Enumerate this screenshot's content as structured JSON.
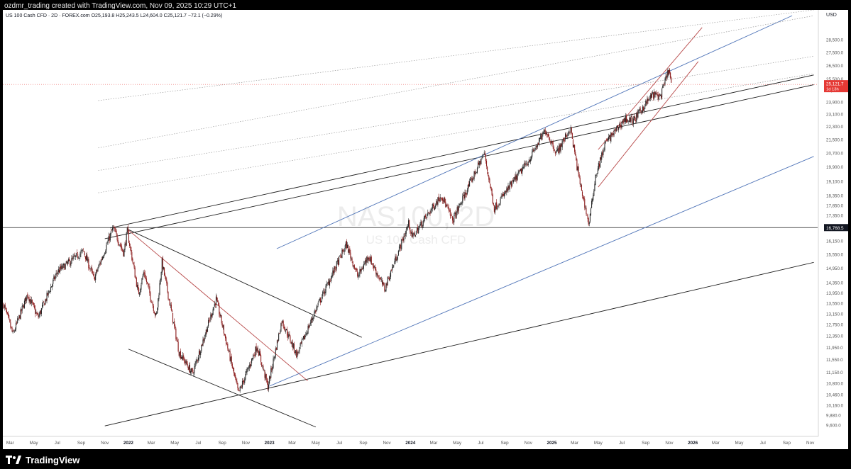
{
  "header": {
    "caption": "ozdmr_trading created with TradingView.com, Nov 09, 2025 10:29 UTC+1"
  },
  "legend": {
    "symbol_text": "US 100 Cash CFD · 2D · FOREX.com",
    "o_label": "O",
    "o_value": "25,193.8",
    "h_label": "H",
    "h_value": "25,243.5",
    "l_label": "L",
    "l_value": "24,604.0",
    "c_label": "C",
    "c_value": "25,121.7",
    "change": "−72.1 (−0.29%)"
  },
  "watermark": {
    "symbol": "NAS100, 2D",
    "description": "US 100 Cash CFD"
  },
  "footer": {
    "brand": "TradingView",
    "brand_icon": "tradingview-logo-icon"
  },
  "colors": {
    "candle_up": "#2a2a2a",
    "candle_down": "#8c1c1c",
    "trend_black": "#1e1e1e",
    "trend_blue": "#4f74b8",
    "trend_red": "#b84a4a",
    "guide_dotted": "#9a9a9a",
    "current_price_bg": "#e53935",
    "level_bg": "#131722"
  },
  "chart_data": {
    "type": "candlestick",
    "title": "NAS100, 2D",
    "subtitle": "US 100 Cash CFD",
    "xlabel": "",
    "ylabel": "",
    "currency": "USD",
    "scale": "log",
    "ylim": [
      9300,
      31000
    ],
    "xlim": [
      "2021-02-10",
      "2026-11-20"
    ],
    "grid": false,
    "y_ticks": [
      {
        "value": 28500,
        "label": "28,500.0"
      },
      {
        "value": 27500,
        "label": "27,500.0"
      },
      {
        "value": 26500,
        "label": "26,500.0"
      },
      {
        "value": 25500,
        "label": "25,500.0"
      },
      {
        "value": 24700,
        "label": "24,700.0"
      },
      {
        "value": 23900,
        "label": "23,900.0"
      },
      {
        "value": 23100,
        "label": "23,100.0"
      },
      {
        "value": 22300,
        "label": "22,300.0"
      },
      {
        "value": 21500,
        "label": "21,500.0"
      },
      {
        "value": 20700,
        "label": "20,700.0"
      },
      {
        "value": 19900,
        "label": "19,900.0"
      },
      {
        "value": 19100,
        "label": "19,100.0"
      },
      {
        "value": 18350,
        "label": "18,350.0"
      },
      {
        "value": 17850,
        "label": "17,850.0"
      },
      {
        "value": 17350,
        "label": "17,350.0"
      },
      {
        "value": 16150,
        "label": "16,150.0"
      },
      {
        "value": 15550,
        "label": "15,550.0"
      },
      {
        "value": 14950,
        "label": "14,950.0"
      },
      {
        "value": 14350,
        "label": "14,350.0"
      },
      {
        "value": 13950,
        "label": "13,950.0"
      },
      {
        "value": 13550,
        "label": "13,550.0"
      },
      {
        "value": 13150,
        "label": "13,150.0"
      },
      {
        "value": 12750,
        "label": "12,750.0"
      },
      {
        "value": 12350,
        "label": "12,350.0"
      },
      {
        "value": 11950,
        "label": "11,950.0"
      },
      {
        "value": 11550,
        "label": "11,550.0"
      },
      {
        "value": 11150,
        "label": "11,150.0"
      },
      {
        "value": 10800,
        "label": "10,800.0"
      },
      {
        "value": 10460,
        "label": "10,460.0"
      },
      {
        "value": 10160,
        "label": "10,160.0"
      },
      {
        "value": 9880,
        "label": "9,880.0"
      },
      {
        "value": 9600,
        "label": "9,600.0"
      }
    ],
    "x_ticks": [
      {
        "date": "2021-03-01",
        "label": "Mar",
        "bold": false
      },
      {
        "date": "2021-05-01",
        "label": "May",
        "bold": false
      },
      {
        "date": "2021-07-01",
        "label": "Jul",
        "bold": false
      },
      {
        "date": "2021-09-01",
        "label": "Sep",
        "bold": false
      },
      {
        "date": "2021-11-01",
        "label": "Nov",
        "bold": false
      },
      {
        "date": "2022-01-01",
        "label": "2022",
        "bold": true
      },
      {
        "date": "2022-03-01",
        "label": "Mar",
        "bold": false
      },
      {
        "date": "2022-05-01",
        "label": "May",
        "bold": false
      },
      {
        "date": "2022-07-01",
        "label": "Jul",
        "bold": false
      },
      {
        "date": "2022-09-01",
        "label": "Sep",
        "bold": false
      },
      {
        "date": "2022-11-01",
        "label": "Nov",
        "bold": false
      },
      {
        "date": "2023-01-01",
        "label": "2023",
        "bold": true
      },
      {
        "date": "2023-03-01",
        "label": "Mar",
        "bold": false
      },
      {
        "date": "2023-05-01",
        "label": "May",
        "bold": false
      },
      {
        "date": "2023-07-01",
        "label": "Jul",
        "bold": false
      },
      {
        "date": "2023-09-01",
        "label": "Sep",
        "bold": false
      },
      {
        "date": "2023-11-01",
        "label": "Nov",
        "bold": false
      },
      {
        "date": "2024-01-01",
        "label": "2024",
        "bold": true
      },
      {
        "date": "2024-03-01",
        "label": "Mar",
        "bold": false
      },
      {
        "date": "2024-05-01",
        "label": "May",
        "bold": false
      },
      {
        "date": "2024-07-01",
        "label": "Jul",
        "bold": false
      },
      {
        "date": "2024-09-01",
        "label": "Sep",
        "bold": false
      },
      {
        "date": "2024-11-01",
        "label": "Nov",
        "bold": false
      },
      {
        "date": "2025-01-01",
        "label": "2025",
        "bold": true
      },
      {
        "date": "2025-03-01",
        "label": "Mar",
        "bold": false
      },
      {
        "date": "2025-05-01",
        "label": "May",
        "bold": false
      },
      {
        "date": "2025-07-01",
        "label": "Jul",
        "bold": false
      },
      {
        "date": "2025-09-01",
        "label": "Sep",
        "bold": false
      },
      {
        "date": "2025-11-01",
        "label": "Nov",
        "bold": false
      },
      {
        "date": "2026-01-01",
        "label": "2026",
        "bold": true
      },
      {
        "date": "2026-03-01",
        "label": "Mar",
        "bold": false
      },
      {
        "date": "2026-05-01",
        "label": "May",
        "bold": false
      },
      {
        "date": "2026-07-01",
        "label": "Jul",
        "bold": false
      },
      {
        "date": "2026-09-01",
        "label": "Sep",
        "bold": false
      },
      {
        "date": "2026-11-01",
        "label": "Nov",
        "bold": false
      }
    ],
    "price_path": [
      {
        "date": "2021-02-12",
        "close": 13500
      },
      {
        "date": "2021-03-08",
        "close": 12400
      },
      {
        "date": "2021-04-15",
        "close": 13900
      },
      {
        "date": "2021-05-12",
        "close": 13000
      },
      {
        "date": "2021-07-01",
        "close": 14800
      },
      {
        "date": "2021-09-07",
        "close": 15700
      },
      {
        "date": "2021-10-04",
        "close": 14500
      },
      {
        "date": "2021-11-22",
        "close": 16750
      },
      {
        "date": "2021-12-20",
        "close": 15600
      },
      {
        "date": "2021-12-29",
        "close": 16600
      },
      {
        "date": "2022-01-27",
        "close": 13900
      },
      {
        "date": "2022-02-10",
        "close": 14800
      },
      {
        "date": "2022-03-14",
        "close": 13000
      },
      {
        "date": "2022-03-29",
        "close": 15200
      },
      {
        "date": "2022-05-12",
        "close": 11800
      },
      {
        "date": "2022-06-16",
        "close": 11100
      },
      {
        "date": "2022-08-16",
        "close": 13700
      },
      {
        "date": "2022-10-13",
        "close": 10500
      },
      {
        "date": "2022-11-30",
        "close": 12000
      },
      {
        "date": "2022-12-28",
        "close": 10700
      },
      {
        "date": "2023-02-02",
        "close": 12900
      },
      {
        "date": "2023-03-13",
        "close": 11700
      },
      {
        "date": "2023-05-01",
        "close": 13300
      },
      {
        "date": "2023-07-19",
        "close": 16000
      },
      {
        "date": "2023-08-18",
        "close": 14600
      },
      {
        "date": "2023-09-14",
        "close": 15500
      },
      {
        "date": "2023-10-26",
        "close": 14100
      },
      {
        "date": "2023-12-28",
        "close": 17000
      },
      {
        "date": "2024-01-05",
        "close": 16300
      },
      {
        "date": "2024-03-21",
        "close": 18400
      },
      {
        "date": "2024-04-19",
        "close": 17100
      },
      {
        "date": "2024-07-10",
        "close": 20700
      },
      {
        "date": "2024-08-05",
        "close": 17700
      },
      {
        "date": "2024-09-06",
        "close": 18600
      },
      {
        "date": "2024-10-31",
        "close": 20200
      },
      {
        "date": "2024-12-16",
        "close": 22100
      },
      {
        "date": "2025-01-13",
        "close": 20700
      },
      {
        "date": "2025-02-18",
        "close": 22200
      },
      {
        "date": "2025-03-13",
        "close": 19200
      },
      {
        "date": "2025-04-07",
        "close": 16900
      },
      {
        "date": "2025-04-24",
        "close": 19400
      },
      {
        "date": "2025-05-20",
        "close": 21300
      },
      {
        "date": "2025-07-10",
        "close": 22800
      },
      {
        "date": "2025-08-01",
        "close": 22700
      },
      {
        "date": "2025-09-18",
        "close": 24400
      },
      {
        "date": "2025-10-10",
        "close": 24300
      },
      {
        "date": "2025-10-30",
        "close": 26200
      },
      {
        "date": "2025-11-07",
        "close": 25121.7
      }
    ],
    "trendlines": [
      {
        "name": "upper-black-1",
        "color": "black",
        "style": "solid",
        "p1": {
          "date": "2021-11-15",
          "value": 16750
        },
        "p2": {
          "date": "2026-11-10",
          "value": 25800
        }
      },
      {
        "name": "upper-black-2",
        "color": "black",
        "style": "solid",
        "p1": {
          "date": "2021-11-01",
          "value": 16250
        },
        "p2": {
          "date": "2026-11-10",
          "value": 25100
        }
      },
      {
        "name": "lower-black",
        "color": "black",
        "style": "solid",
        "p1": {
          "date": "2021-11-01",
          "value": 9580
        },
        "p2": {
          "date": "2026-11-10",
          "value": 15200
        }
      },
      {
        "name": "top-falling-black",
        "color": "black",
        "style": "solid",
        "p1": {
          "date": "2021-12-29",
          "value": 16700
        },
        "p2": {
          "date": "2023-08-28",
          "value": 12300
        }
      },
      {
        "name": "bottom-falling-black",
        "color": "black",
        "style": "solid",
        "p1": {
          "date": "2022-01-01",
          "value": 11900
        },
        "p2": {
          "date": "2023-05-01",
          "value": 9550
        }
      },
      {
        "name": "top-falling-red",
        "color": "red",
        "style": "solid",
        "p1": {
          "date": "2021-12-29",
          "value": 16700
        },
        "p2": {
          "date": "2023-04-10",
          "value": 10880
        }
      },
      {
        "name": "channel-lower-blue",
        "color": "blue",
        "style": "solid",
        "p1": {
          "date": "2022-12-28",
          "value": 10700
        },
        "p2": {
          "date": "2026-11-10",
          "value": 20500
        }
      },
      {
        "name": "channel-upper-blue",
        "color": "blue",
        "style": "solid",
        "p1": {
          "date": "2023-01-20",
          "value": 15800
        },
        "p2": {
          "date": "2026-09-15",
          "value": 30500
        }
      },
      {
        "name": "rising-red-upper",
        "color": "red",
        "style": "solid",
        "p1": {
          "date": "2025-05-01",
          "value": 20900
        },
        "p2": {
          "date": "2026-01-25",
          "value": 29500
        }
      },
      {
        "name": "rising-red-lower",
        "color": "red",
        "style": "solid",
        "p1": {
          "date": "2025-05-01",
          "value": 18800
        },
        "p2": {
          "date": "2026-01-15",
          "value": 26800
        }
      },
      {
        "name": "dotted-guide-1",
        "color": "gray",
        "style": "dotted",
        "p1": {
          "date": "2021-10-15",
          "value": 24000
        },
        "p2": {
          "date": "2026-11-10",
          "value": 31000
        }
      },
      {
        "name": "dotted-guide-2",
        "color": "gray",
        "style": "dotted",
        "p1": {
          "date": "2021-10-15",
          "value": 21000
        },
        "p2": {
          "date": "2026-11-10",
          "value": 30500
        }
      },
      {
        "name": "dotted-guide-3",
        "color": "gray",
        "style": "dotted",
        "p1": {
          "date": "2021-10-15",
          "value": 19700
        },
        "p2": {
          "date": "2026-11-10",
          "value": 27200
        }
      },
      {
        "name": "dotted-guide-4",
        "color": "gray",
        "style": "dotted",
        "p1": {
          "date": "2021-10-15",
          "value": 18500
        },
        "p2": {
          "date": "2026-11-10",
          "value": 25900
        }
      }
    ],
    "horizontal_level": {
      "value": 16768.5,
      "label": "16,768.5"
    },
    "current_price": {
      "value": 25121.7,
      "label": "25,121.7",
      "countdown": "1d 13h"
    }
  }
}
